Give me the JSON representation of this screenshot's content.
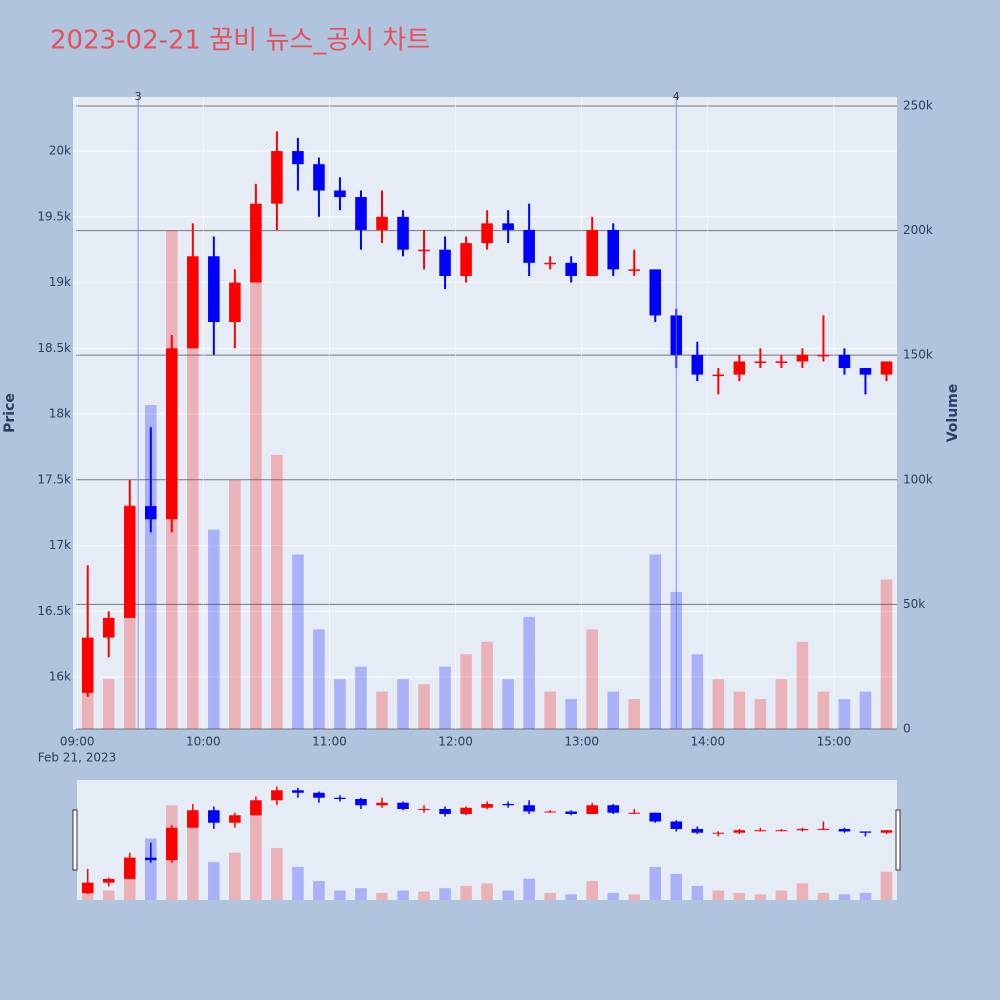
{
  "chart_data": {
    "type": "candlestick",
    "title": "2023-02-21 꿈비 뉴스_공시 차트",
    "y_label": "Price",
    "y2_label": "Volume",
    "x_date_label": "Feb 21, 2023",
    "increasing_color": "#ff0000",
    "decreasing_color": "#0000ff",
    "x": [
      "09:00",
      "09:10",
      "09:20",
      "09:30",
      "09:40",
      "09:50",
      "10:00",
      "10:10",
      "10:20",
      "10:30",
      "10:40",
      "10:50",
      "11:00",
      "11:10",
      "11:20",
      "11:30",
      "11:40",
      "11:50",
      "12:00",
      "12:10",
      "12:20",
      "12:30",
      "12:40",
      "12:50",
      "13:00",
      "13:10",
      "13:20",
      "13:30",
      "13:40",
      "13:50",
      "14:00",
      "14:10",
      "14:20",
      "14:30",
      "14:40",
      "14:50",
      "15:00",
      "15:10",
      "15:20"
    ],
    "open": [
      15880,
      16300,
      16450,
      17300,
      17200,
      18500,
      19200,
      18700,
      19000,
      19600,
      20000,
      19900,
      19700,
      19650,
      19400,
      19500,
      19250,
      19250,
      19050,
      19300,
      19450,
      19400,
      19150,
      19150,
      19050,
      19400,
      19100,
      19100,
      18750,
      18450,
      18300,
      18300,
      18400,
      18400,
      18400,
      18450,
      18450,
      18350,
      18300
    ],
    "high": [
      16850,
      16500,
      17500,
      17900,
      18600,
      19450,
      19350,
      19100,
      19750,
      20150,
      20100,
      19950,
      19800,
      19700,
      19700,
      19550,
      19400,
      19350,
      19350,
      19550,
      19550,
      19600,
      19200,
      19200,
      19500,
      19450,
      19250,
      19100,
      18800,
      18550,
      18350,
      18450,
      18500,
      18450,
      18500,
      18750,
      18500,
      18350,
      18400
    ],
    "low": [
      15850,
      16150,
      16450,
      17100,
      17100,
      18500,
      18450,
      18500,
      19000,
      19400,
      19700,
      19500,
      19550,
      19250,
      19300,
      19200,
      19100,
      18950,
      19000,
      19250,
      19300,
      19050,
      19100,
      19000,
      19050,
      19050,
      19050,
      18700,
      18350,
      18250,
      18150,
      18250,
      18350,
      18350,
      18350,
      18400,
      18300,
      18150,
      18250
    ],
    "close": [
      16300,
      16450,
      17300,
      17200,
      18500,
      19200,
      18700,
      19000,
      19600,
      20000,
      19900,
      19700,
      19650,
      19400,
      19500,
      19250,
      19250,
      19050,
      19300,
      19450,
      19400,
      19150,
      19150,
      19050,
      19400,
      19100,
      19100,
      18750,
      18450,
      18300,
      18300,
      18400,
      18400,
      18400,
      18450,
      18450,
      18350,
      18300,
      18400
    ],
    "volume": [
      30000,
      20000,
      90000,
      130000,
      200000,
      180000,
      80000,
      100000,
      200000,
      110000,
      70000,
      40000,
      20000,
      25000,
      15000,
      20000,
      18000,
      25000,
      30000,
      35000,
      20000,
      45000,
      15000,
      12000,
      40000,
      15000,
      12000,
      70000,
      55000,
      30000,
      20000,
      15000,
      12000,
      20000,
      35000,
      15000,
      12000,
      15000,
      60000
    ],
    "xlim": [
      "08:58",
      "15:30"
    ],
    "xticks": [
      "09:00",
      "10:00",
      "11:00",
      "12:00",
      "13:00",
      "14:00",
      "15:00"
    ],
    "ylim": [
      15605,
      20411
    ],
    "yticks": [
      {
        "value": 16000,
        "label": "16k"
      },
      {
        "value": 16500,
        "label": "16.5k"
      },
      {
        "value": 17000,
        "label": "17k"
      },
      {
        "value": 17500,
        "label": "17.5k"
      },
      {
        "value": 18000,
        "label": "18k"
      },
      {
        "value": 18500,
        "label": "18.5k"
      },
      {
        "value": 19000,
        "label": "19k"
      },
      {
        "value": 19500,
        "label": "19.5k"
      },
      {
        "value": 20000,
        "label": "20k"
      }
    ],
    "y2lim": [
      0,
      253600
    ],
    "y2ticks": [
      0,
      {
        "value": 50000,
        "label": "50k"
      },
      {
        "value": 100000,
        "label": "100k"
      },
      {
        "value": 150000,
        "label": "150k"
      },
      {
        "value": 200000,
        "label": "200k"
      },
      {
        "value": 250000,
        "label": "250k"
      }
    ],
    "annotations": [
      {
        "x": "09:29",
        "text": "3"
      },
      {
        "x": "13:45",
        "text": "4"
      }
    ],
    "grid": true,
    "range_slider": true
  }
}
